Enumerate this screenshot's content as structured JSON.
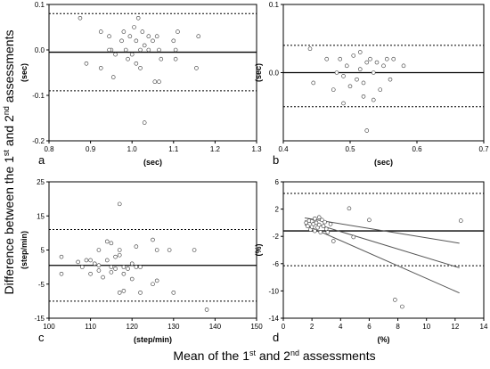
{
  "figure": {
    "ylabel_parts": [
      "Difference between the 1",
      "st",
      " and 2",
      "nd",
      " assessments"
    ],
    "xlabel_parts": [
      "Mean of the 1",
      "st",
      " and 2",
      "nd",
      " assessments"
    ]
  },
  "chart_data": [
    {
      "type": "scatter",
      "panel_label": "a",
      "xlabel": "(sec)",
      "ylabel": "(sec)",
      "xlim": [
        0.8,
        1.3
      ],
      "ylim": [
        -0.2,
        0.1
      ],
      "xticks": [
        "0.8",
        "0.9",
        "1.0",
        "1.1",
        "1.2",
        "1.3"
      ],
      "xtick_values": [
        0.8,
        0.9,
        1.0,
        1.1,
        1.2,
        1.3
      ],
      "yticks": [
        "-0.2",
        "-0.1",
        "0.0",
        "0.1"
      ],
      "ytick_values": [
        -0.2,
        -0.1,
        0.0,
        0.1
      ],
      "mean_line": -0.005,
      "limits": [
        0.08,
        -0.09
      ],
      "points": [
        [
          0.875,
          0.07
        ],
        [
          0.89,
          -0.03
        ],
        [
          0.925,
          0.04
        ],
        [
          0.925,
          -0.04
        ],
        [
          0.945,
          0.03
        ],
        [
          0.95,
          0.0
        ],
        [
          0.955,
          -0.06
        ],
        [
          0.96,
          -0.01
        ],
        [
          0.975,
          0.02
        ],
        [
          0.98,
          0.04
        ],
        [
          0.985,
          0.0
        ],
        [
          0.99,
          -0.02
        ],
        [
          0.995,
          0.03
        ],
        [
          1.0,
          -0.01
        ],
        [
          1.005,
          0.05
        ],
        [
          1.01,
          0.02
        ],
        [
          1.01,
          -0.03
        ],
        [
          1.015,
          0.07
        ],
        [
          1.02,
          0.0
        ],
        [
          1.02,
          -0.04
        ],
        [
          1.025,
          0.04
        ],
        [
          1.03,
          0.01
        ],
        [
          1.03,
          -0.16
        ],
        [
          1.04,
          0.03
        ],
        [
          1.05,
          0.02
        ],
        [
          1.055,
          -0.07
        ],
        [
          1.06,
          0.03
        ],
        [
          1.065,
          0.0
        ],
        [
          1.065,
          -0.07
        ],
        [
          1.07,
          -0.02
        ],
        [
          1.1,
          0.02
        ],
        [
          1.105,
          0.0
        ],
        [
          1.105,
          -0.02
        ],
        [
          1.11,
          0.04
        ],
        [
          1.155,
          -0.04
        ],
        [
          1.16,
          0.03
        ],
        [
          0.945,
          0.0
        ],
        [
          1.04,
          0.0
        ]
      ]
    },
    {
      "type": "scatter",
      "panel_label": "b",
      "xlabel": "(sec)",
      "ylabel": "(sec)",
      "xlim": [
        0.4,
        0.7
      ],
      "ylim": [
        -0.1,
        0.1
      ],
      "xticks": [
        "0.4",
        "0.5",
        "0.6",
        "0.7"
      ],
      "xtick_values": [
        0.4,
        0.5,
        0.6,
        0.7
      ],
      "yticks": [
        "0.0",
        "0.1"
      ],
      "ytick_values": [
        0.0,
        0.1
      ],
      "mean_line": 0.0,
      "limits": [
        0.04,
        -0.05
      ],
      "points": [
        [
          0.44,
          0.035
        ],
        [
          0.445,
          -0.015
        ],
        [
          0.465,
          0.02
        ],
        [
          0.475,
          -0.025
        ],
        [
          0.48,
          0.0
        ],
        [
          0.485,
          0.02
        ],
        [
          0.49,
          -0.005
        ],
        [
          0.49,
          -0.045
        ],
        [
          0.495,
          0.01
        ],
        [
          0.5,
          -0.02
        ],
        [
          0.505,
          0.025
        ],
        [
          0.51,
          -0.01
        ],
        [
          0.515,
          0.03
        ],
        [
          0.515,
          0.005
        ],
        [
          0.52,
          -0.015
        ],
        [
          0.52,
          -0.035
        ],
        [
          0.525,
          0.015
        ],
        [
          0.525,
          -0.085
        ],
        [
          0.53,
          0.02
        ],
        [
          0.535,
          0.0
        ],
        [
          0.535,
          -0.04
        ],
        [
          0.54,
          0.015
        ],
        [
          0.545,
          -0.025
        ],
        [
          0.55,
          0.01
        ],
        [
          0.555,
          0.02
        ],
        [
          0.56,
          -0.01
        ],
        [
          0.565,
          0.02
        ],
        [
          0.58,
          0.01
        ]
      ]
    },
    {
      "type": "scatter",
      "panel_label": "c",
      "xlabel": "(step/min)",
      "ylabel": "(step/min)",
      "xlim": [
        100,
        150
      ],
      "ylim": [
        -15,
        25
      ],
      "xticks": [
        "100",
        "110",
        "120",
        "130",
        "140",
        "150"
      ],
      "xtick_values": [
        100,
        110,
        120,
        130,
        140,
        150
      ],
      "yticks": [
        "-15",
        "-5",
        "5",
        "15",
        "25"
      ],
      "ytick_values": [
        -15,
        -5,
        5,
        15,
        25
      ],
      "mean_line": 0.5,
      "limits": [
        11,
        -10
      ],
      "points": [
        [
          103,
          3
        ],
        [
          103,
          -2
        ],
        [
          107,
          1.5
        ],
        [
          108,
          0
        ],
        [
          109,
          2
        ],
        [
          110,
          2
        ],
        [
          110,
          -2
        ],
        [
          111,
          1
        ],
        [
          112,
          -1
        ],
        [
          112,
          0.5
        ],
        [
          113,
          -3
        ],
        [
          114,
          2
        ],
        [
          114,
          7.5
        ],
        [
          115,
          0
        ],
        [
          115,
          7
        ],
        [
          115,
          -1.5
        ],
        [
          116,
          3
        ],
        [
          116,
          -0.5
        ],
        [
          117,
          18.5
        ],
        [
          117,
          5
        ],
        [
          117,
          3.5
        ],
        [
          117,
          -7.5
        ],
        [
          118,
          0
        ],
        [
          118,
          -2
        ],
        [
          118,
          -7
        ],
        [
          119,
          -0.5
        ],
        [
          120,
          1
        ],
        [
          120,
          -3.5
        ],
        [
          121,
          0
        ],
        [
          121,
          6
        ],
        [
          122,
          0
        ],
        [
          122,
          -7.5
        ],
        [
          125,
          8
        ],
        [
          125,
          -5
        ],
        [
          126,
          -4
        ],
        [
          126,
          5
        ],
        [
          129,
          5
        ],
        [
          130,
          -7.5
        ],
        [
          135,
          5
        ],
        [
          138,
          -12.5
        ],
        [
          112,
          5
        ]
      ]
    },
    {
      "type": "scatter",
      "panel_label": "d",
      "xlabel": "(%)",
      "ylabel": "(%)",
      "xlim": [
        0,
        14
      ],
      "ylim": [
        -14,
        6
      ],
      "xticks": [
        "0",
        "2",
        "4",
        "6",
        "8",
        "10",
        "12",
        "14"
      ],
      "xtick_values": [
        0,
        2,
        4,
        6,
        8,
        10,
        12,
        14
      ],
      "yticks": [
        "-14",
        "-10",
        "-6",
        "-2",
        "2",
        "6"
      ],
      "ytick_values": [
        -14,
        -10,
        -6,
        -2,
        2,
        6
      ],
      "mean_line": -1.2,
      "limits": [
        4.3,
        -6.3
      ],
      "regression_lines": [
        [
          [
            1.5,
            0.7
          ],
          [
            12.3,
            -3.0
          ]
        ],
        [
          [
            1.5,
            0.3
          ],
          [
            12.3,
            -6.6
          ]
        ],
        [
          [
            1.5,
            -0.3
          ],
          [
            12.3,
            -10.3
          ]
        ]
      ],
      "points": [
        [
          1.6,
          0.0
        ],
        [
          1.7,
          -0.5
        ],
        [
          1.8,
          0.3
        ],
        [
          1.9,
          -1.0
        ],
        [
          2.0,
          0.2
        ],
        [
          2.0,
          -0.6
        ],
        [
          2.1,
          -0.2
        ],
        [
          2.2,
          0.6
        ],
        [
          2.2,
          -1.2
        ],
        [
          2.3,
          0.0
        ],
        [
          2.4,
          -0.7
        ],
        [
          2.5,
          0.8
        ],
        [
          2.5,
          -0.3
        ],
        [
          2.6,
          -1.4
        ],
        [
          2.7,
          0.4
        ],
        [
          2.8,
          -0.5
        ],
        [
          2.9,
          0.1
        ],
        [
          3.0,
          -0.9
        ],
        [
          3.1,
          -1.4
        ],
        [
          3.3,
          -0.2
        ],
        [
          3.5,
          -2.7
        ],
        [
          4.6,
          2.1
        ],
        [
          4.9,
          -2.1
        ],
        [
          6.0,
          0.4
        ],
        [
          7.8,
          -11.3
        ],
        [
          8.3,
          -12.3
        ],
        [
          12.4,
          0.3
        ]
      ]
    }
  ]
}
